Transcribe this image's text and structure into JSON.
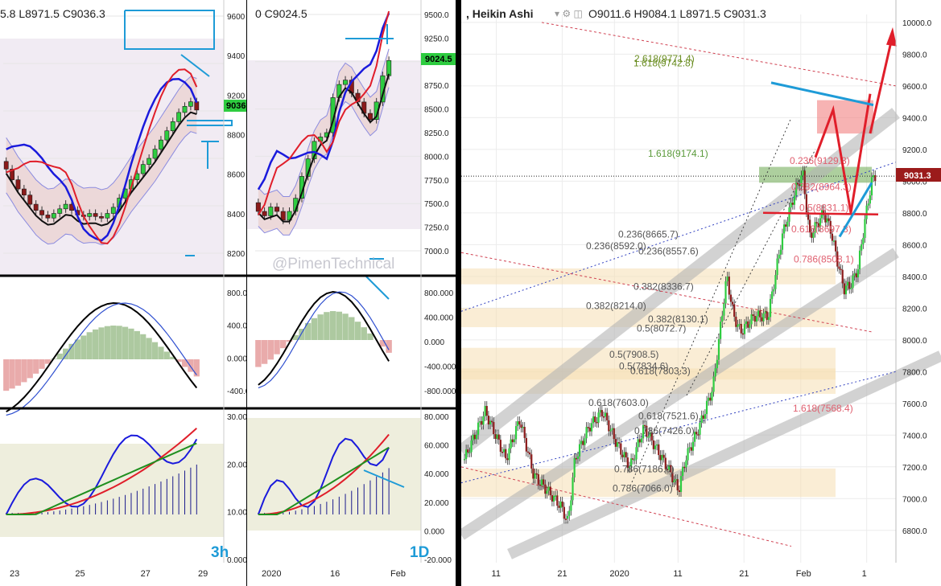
{
  "colors": {
    "up": "#2ecc40",
    "down": "#8b1a1a",
    "blue": "#1a1adc",
    "red": "#e01e2a",
    "cyan": "#1e9bd7",
    "green": "#1f8f1f",
    "olive": "#6b8e23",
    "price_tag": "#9b1b1b",
    "zone": "#f5deb3",
    "chan": "#b4b4b4"
  },
  "watermark": "@PimenTechnical",
  "panels": [
    {
      "id": "3h",
      "header": "5.8  L8971.5  C9036.3",
      "timeframe": "3h",
      "price_tag": "9036",
      "price_axis": [
        "9600",
        "9400",
        "9200",
        "8800",
        "8600",
        "8400",
        "8200"
      ],
      "macd_axis": [
        "800.0",
        "400.0",
        "0.000",
        "-400.0"
      ],
      "osc_axis": [
        "30.00",
        "20.00",
        "10.00",
        "0.000"
      ],
      "time_axis": [
        "23",
        "25",
        "27",
        "29"
      ],
      "chart_data": {
        "type": "candlestick",
        "title": "",
        "x": [
          "23",
          "25",
          "27",
          "29"
        ],
        "ylim": [
          8100,
          9650
        ],
        "candles": [
          {
            "o": 8700,
            "c": 8650,
            "d": "down"
          },
          {
            "o": 8650,
            "c": 8580,
            "d": "down"
          },
          {
            "o": 8580,
            "c": 8520,
            "d": "down"
          },
          {
            "o": 8520,
            "c": 8480,
            "d": "down"
          },
          {
            "o": 8480,
            "c": 8420,
            "d": "down"
          },
          {
            "o": 8420,
            "c": 8380,
            "d": "down"
          },
          {
            "o": 8380,
            "c": 8350,
            "d": "down"
          },
          {
            "o": 8350,
            "c": 8330,
            "d": "down"
          },
          {
            "o": 8330,
            "c": 8360,
            "d": "up"
          },
          {
            "o": 8360,
            "c": 8390,
            "d": "up"
          },
          {
            "o": 8390,
            "c": 8420,
            "d": "up"
          },
          {
            "o": 8420,
            "c": 8380,
            "d": "down"
          },
          {
            "o": 8380,
            "c": 8350,
            "d": "down"
          },
          {
            "o": 8350,
            "c": 8340,
            "d": "down"
          },
          {
            "o": 8340,
            "c": 8360,
            "d": "up"
          },
          {
            "o": 8360,
            "c": 8340,
            "d": "down"
          },
          {
            "o": 8340,
            "c": 8330,
            "d": "down"
          },
          {
            "o": 8330,
            "c": 8360,
            "d": "up"
          },
          {
            "o": 8360,
            "c": 8400,
            "d": "up"
          },
          {
            "o": 8400,
            "c": 8460,
            "d": "up"
          },
          {
            "o": 8460,
            "c": 8520,
            "d": "up"
          },
          {
            "o": 8520,
            "c": 8580,
            "d": "up"
          },
          {
            "o": 8580,
            "c": 8620,
            "d": "up"
          },
          {
            "o": 8620,
            "c": 8680,
            "d": "up"
          },
          {
            "o": 8680,
            "c": 8720,
            "d": "up"
          },
          {
            "o": 8720,
            "c": 8780,
            "d": "up"
          },
          {
            "o": 8780,
            "c": 8840,
            "d": "up"
          },
          {
            "o": 8840,
            "c": 8900,
            "d": "up"
          },
          {
            "o": 8900,
            "c": 8960,
            "d": "up"
          },
          {
            "o": 8960,
            "c": 9020,
            "d": "up"
          },
          {
            "o": 9020,
            "c": 9060,
            "d": "up"
          },
          {
            "o": 9060,
            "c": 9090,
            "d": "up"
          },
          {
            "o": 9090,
            "c": 9036,
            "d": "down"
          }
        ]
      }
    },
    {
      "id": "1d",
      "header": "0  C9024.5",
      "timeframe": "1D",
      "price_tag": "9024.5",
      "price_axis": [
        "9500.0",
        "9250.0",
        "9000.0",
        "8750.0",
        "8500.0",
        "8250.0",
        "8000.0",
        "7750.0",
        "7500.0",
        "7250.0",
        "7000.0"
      ],
      "macd_axis": [
        "800.000",
        "400.000",
        "0.000",
        "-400.000",
        "-800.000"
      ],
      "osc_axis": [
        "80.000",
        "60.000",
        "40.000",
        "20.000",
        "0.000",
        "-20.000"
      ],
      "time_axis": [
        "2020",
        "16",
        "Feb"
      ],
      "chart_data": {
        "type": "candlestick",
        "title": "",
        "x": [
          "2020",
          "16",
          "Feb"
        ],
        "ylim": [
          6850,
          9550
        ],
        "candles": [
          {
            "o": 7400,
            "c": 7300,
            "d": "down"
          },
          {
            "o": 7300,
            "c": 7250,
            "d": "down"
          },
          {
            "o": 7250,
            "c": 7350,
            "d": "up"
          },
          {
            "o": 7350,
            "c": 7300,
            "d": "down"
          },
          {
            "o": 7300,
            "c": 7200,
            "d": "down"
          },
          {
            "o": 7200,
            "c": 7300,
            "d": "up"
          },
          {
            "o": 7300,
            "c": 7450,
            "d": "up"
          },
          {
            "o": 7450,
            "c": 7700,
            "d": "up"
          },
          {
            "o": 7700,
            "c": 7900,
            "d": "up"
          },
          {
            "o": 7900,
            "c": 8100,
            "d": "up"
          },
          {
            "o": 8100,
            "c": 8150,
            "d": "up"
          },
          {
            "o": 8150,
            "c": 8200,
            "d": "up"
          },
          {
            "o": 8200,
            "c": 8600,
            "d": "up"
          },
          {
            "o": 8600,
            "c": 8750,
            "d": "up"
          },
          {
            "o": 8750,
            "c": 8800,
            "d": "up"
          },
          {
            "o": 8800,
            "c": 8650,
            "d": "down"
          },
          {
            "o": 8650,
            "c": 8550,
            "d": "down"
          },
          {
            "o": 8550,
            "c": 8420,
            "d": "down"
          },
          {
            "o": 8420,
            "c": 8350,
            "d": "down"
          },
          {
            "o": 8350,
            "c": 8550,
            "d": "up"
          },
          {
            "o": 8550,
            "c": 8850,
            "d": "up"
          },
          {
            "o": 8850,
            "c": 9024,
            "d": "up"
          }
        ]
      }
    }
  ],
  "main": {
    "header": {
      "prefix": ", Heikin Ashi",
      "ohlc": "O9011.6  H9084.1  L8971.5  C9031.3"
    },
    "price_tag": "9031.3",
    "price_axis": [
      "10000.0",
      "9800.0",
      "9600.0",
      "9400.0",
      "9200.0",
      "9000.0",
      "8800.0",
      "8600.0",
      "8400.0",
      "8200.0",
      "8000.0",
      "7800.0",
      "7600.0",
      "7400.0",
      "7200.0",
      "7000.0",
      "6800.0"
    ],
    "time_axis": [
      "11",
      "21",
      "2020",
      "11",
      "21",
      "Feb",
      "1"
    ],
    "fib_labels": [
      {
        "text": "2.618(9771.4)",
        "color": "#6b8e23",
        "price": 9771.4
      },
      {
        "text": "1.618(9742.8)",
        "color": "#6b8e23",
        "price": 9742.8
      },
      {
        "text": "1.618(9174.1)",
        "color": "#5a9a3a",
        "price": 9174.1
      },
      {
        "text": "0.236(8665.7)",
        "color": "#555555",
        "price": 8665.7
      },
      {
        "text": "0.236(8592.0)",
        "color": "#555555",
        "price": 8592.0
      },
      {
        "text": "0.236(8557.6)",
        "color": "#555555",
        "price": 8557.6
      },
      {
        "text": "0.382(8336.7)",
        "color": "#555555",
        "price": 8336.7
      },
      {
        "text": "0.382(8214.0)",
        "color": "#555555",
        "price": 8214.0
      },
      {
        "text": "0.382(8130.1)",
        "color": "#555555",
        "price": 8130.1
      },
      {
        "text": "0.5(8072.7)",
        "color": "#555555",
        "price": 8072.7
      },
      {
        "text": "0.5(7908.5)",
        "color": "#555555",
        "price": 7908.5
      },
      {
        "text": "0.5(7834.6)",
        "color": "#555555",
        "price": 7834.6
      },
      {
        "text": "0.618(7803.3)",
        "color": "#555555",
        "price": 7803.3
      },
      {
        "text": "0.618(7603.0)",
        "color": "#555555",
        "price": 7603.0
      },
      {
        "text": "0.618(7521.6)",
        "color": "#555555",
        "price": 7521.6
      },
      {
        "text": "0.786(7426.0)",
        "color": "#555555",
        "price": 7426.0
      },
      {
        "text": "0.786(7186.0)",
        "color": "#555555",
        "price": 7186.0
      },
      {
        "text": "0.786(7066.0)",
        "color": "#555555",
        "price": 7066.0
      },
      {
        "text": "0.236(9129.3)",
        "color": "#e06070",
        "price": 9129.3
      },
      {
        "text": "0.382(8964.3)",
        "color": "#e06070",
        "price": 8964.3
      },
      {
        "text": "0.5(8831.1)",
        "color": "#e06070",
        "price": 8831.1
      },
      {
        "text": "0.618(8697.8)",
        "color": "#e06070",
        "price": 8697.8
      },
      {
        "text": "0.786(8508.1)",
        "color": "#e06070",
        "price": 8508.1
      },
      {
        "text": "1.618(7568.4)",
        "color": "#e06070",
        "price": 7568.4
      }
    ],
    "chart_data": {
      "type": "candlestick",
      "title": "",
      "ylim": [
        6700,
        10050
      ],
      "x": [
        "11",
        "21",
        "2020",
        "11",
        "21",
        "Feb",
        "1"
      ],
      "waypoints": [
        [
          0,
          7250
        ],
        [
          6,
          7550
        ],
        [
          12,
          7250
        ],
        [
          16,
          7500
        ],
        [
          20,
          7150
        ],
        [
          24,
          7050
        ],
        [
          28,
          6950
        ],
        [
          30,
          6850
        ],
        [
          32,
          7250
        ],
        [
          36,
          7450
        ],
        [
          40,
          7550
        ],
        [
          44,
          7350
        ],
        [
          48,
          7200
        ],
        [
          52,
          7450
        ],
        [
          56,
          7300
        ],
        [
          60,
          7150
        ],
        [
          62,
          7050
        ],
        [
          64,
          7250
        ],
        [
          68,
          7450
        ],
        [
          72,
          7700
        ],
        [
          74,
          8050
        ],
        [
          76,
          8400
        ],
        [
          78,
          8150
        ],
        [
          80,
          8050
        ],
        [
          84,
          8150
        ],
        [
          88,
          8150
        ],
        [
          90,
          8400
        ],
        [
          92,
          8650
        ],
        [
          94,
          8800
        ],
        [
          96,
          8950
        ],
        [
          98,
          9050
        ],
        [
          100,
          8650
        ],
        [
          104,
          8800
        ],
        [
          106,
          8700
        ],
        [
          108,
          8500
        ],
        [
          110,
          8320
        ],
        [
          112,
          8350
        ],
        [
          114,
          8450
        ],
        [
          116,
          8750
        ],
        [
          118,
          9000
        ],
        [
          119,
          9031
        ]
      ]
    }
  }
}
